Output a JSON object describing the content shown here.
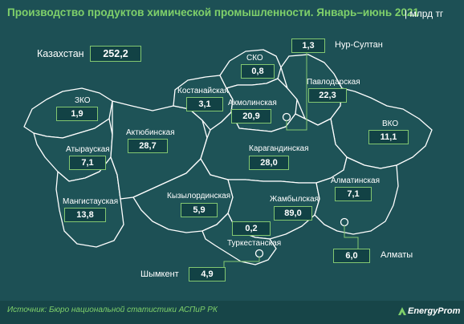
{
  "title": "Производство продуктов химической промышленности. Январь–июнь 2021",
  "unit": "| млрд тг",
  "country": {
    "name": "Казахстан",
    "value": "252,2"
  },
  "regions": {
    "zko": {
      "name": "ЗКО",
      "value": "1,9"
    },
    "atyrau": {
      "name": "Атырауская",
      "value": "7,1"
    },
    "mangystau": {
      "name": "Мангистауская",
      "value": "13,8"
    },
    "aktobe": {
      "name": "Актюбинская",
      "value": "28,7"
    },
    "kostanay": {
      "name": "Костанайская",
      "value": "3,1"
    },
    "sko": {
      "name": "СКО",
      "value": "0,8"
    },
    "akmola": {
      "name": "Акмолинская",
      "value": "20,9"
    },
    "nursultan": {
      "name": "Нур-Султан",
      "value": "1,3"
    },
    "pavlodar": {
      "name": "Павлодарская",
      "value": "22,3"
    },
    "vko": {
      "name": "ВКО",
      "value": "11,1"
    },
    "karaganda": {
      "name": "Карагандинская",
      "value": "28,0"
    },
    "kyzylorda": {
      "name": "Кызылординская",
      "value": "5,9"
    },
    "zhambyl": {
      "name": "Жамбылская",
      "value": "89,0"
    },
    "almaty_obl": {
      "name": "Алматинская",
      "value": "7,1"
    },
    "almaty": {
      "name": "Алматы",
      "value": "6,0"
    },
    "turkestan": {
      "name": "Туркестанская",
      "value": "0,2"
    },
    "shymkent": {
      "name": "Шымкент",
      "value": "4,9"
    }
  },
  "source": "Источник: Бюро национальной статистики АСПиР РК",
  "brand": "EnergyProm",
  "colors": {
    "background": "#1d5055",
    "accent": "#7fd06a",
    "box": "#124245",
    "outline": "#ffffff"
  }
}
